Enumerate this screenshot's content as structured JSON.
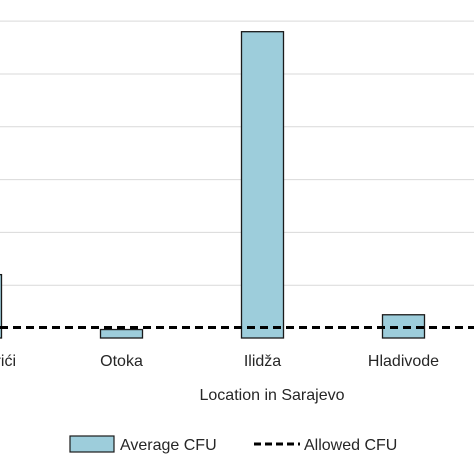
{
  "chart_data": {
    "type": "bar",
    "categories": [
      "Dobrinja / Bužarići",
      "Otoka",
      "Ilidža",
      "Hladivode"
    ],
    "visible_category_labels": [
      "žarići",
      "Otoka",
      "Ilidža",
      "Hladivode"
    ],
    "series": [
      {
        "name": "Average CFU",
        "values": [
          60,
          8,
          290,
          22
        ]
      }
    ],
    "reference_line": {
      "name": "Allowed CFU",
      "value": 10
    },
    "xlabel": "Location in Sarajevo",
    "ylabel": "",
    "ylim": [
      0,
      320
    ],
    "grid": true,
    "legend_position": "bottom",
    "colors": {
      "bar_fill": "#9dcddb",
      "bar_stroke": "#1a1a1a",
      "grid": "#d9d9d9",
      "reference_line": "#000000"
    }
  }
}
